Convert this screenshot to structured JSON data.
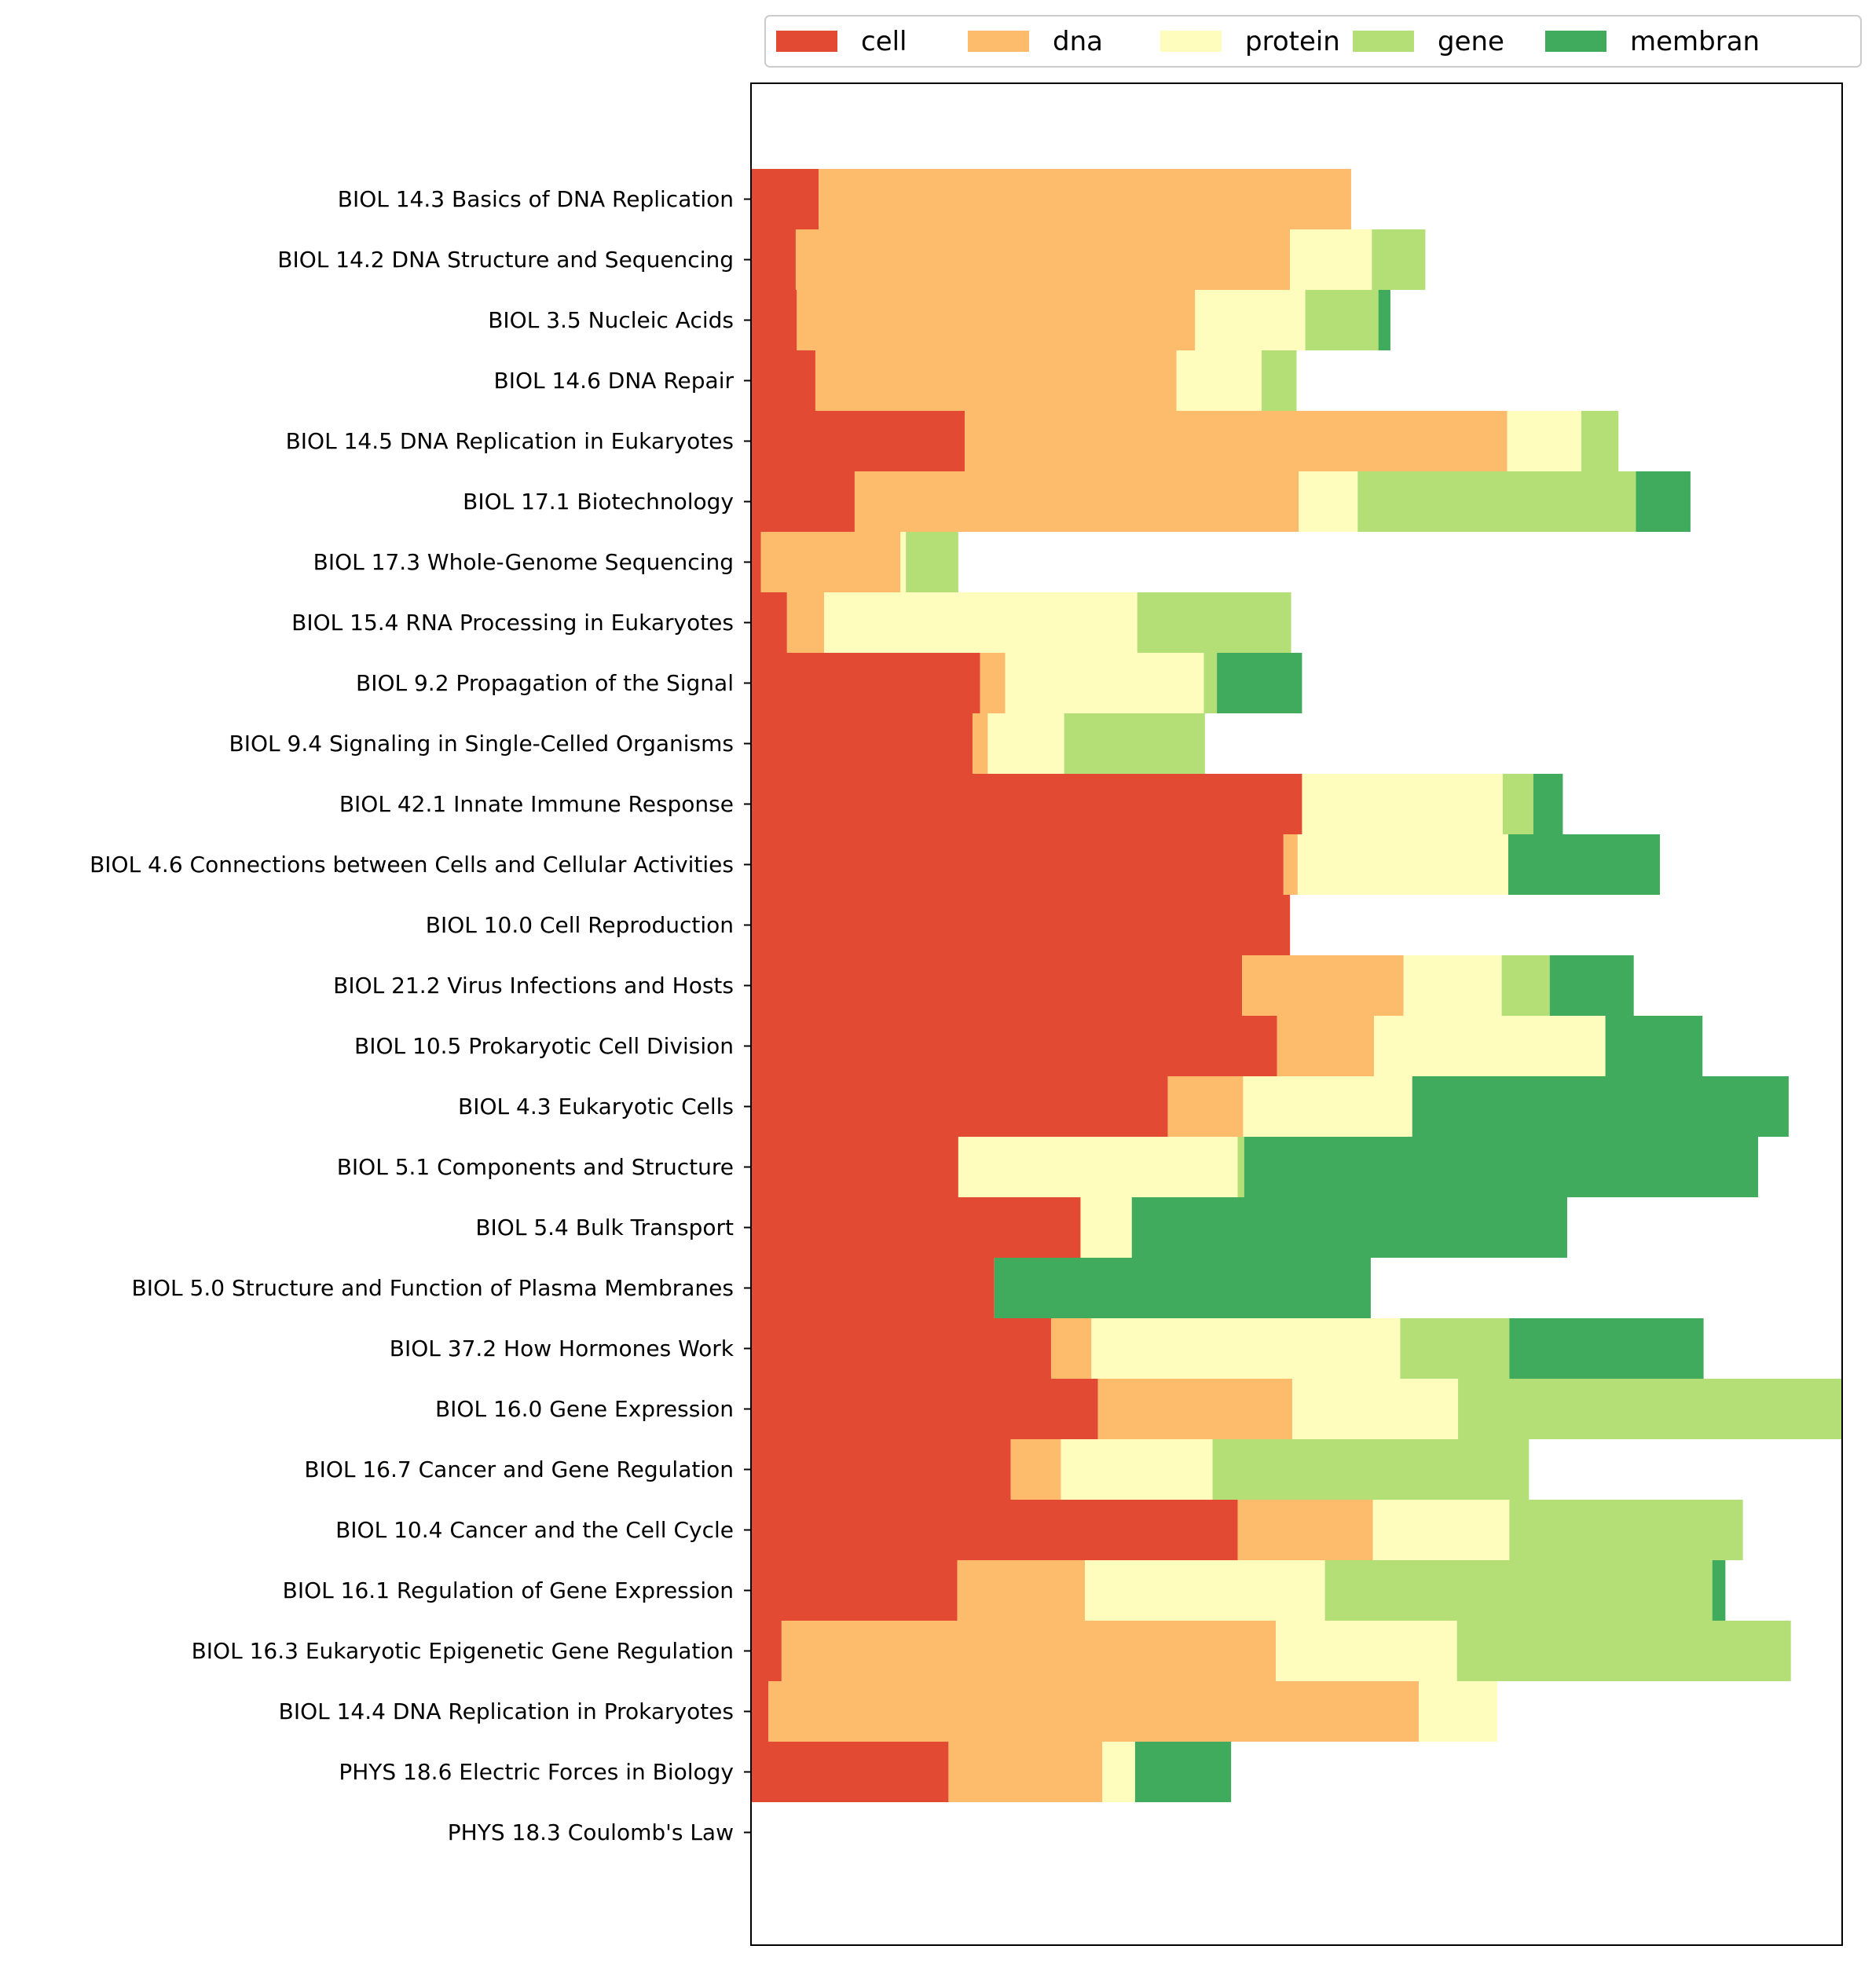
{
  "chart_data": {
    "type": "bar",
    "orientation": "horizontal",
    "stacked": true,
    "title": "",
    "xlabel": "",
    "ylabel": "",
    "xlim": [
      0,
      1.0
    ],
    "x_ticks_shown": false,
    "grid": false,
    "legend": {
      "placement": "top",
      "columns": 5
    },
    "categories": [
      "BIOL 14.3 Basics of DNA Replication",
      "BIOL 14.2 DNA Structure and Sequencing",
      "BIOL 3.5 Nucleic Acids",
      "BIOL 14.6 DNA Repair",
      "BIOL 14.5 DNA Replication in Eukaryotes",
      "BIOL 17.1 Biotechnology",
      "BIOL 17.3 Whole-Genome Sequencing",
      "BIOL 15.4 RNA Processing in Eukaryotes",
      "BIOL 9.2 Propagation of the Signal",
      "BIOL 9.4 Signaling in Single-Celled Organisms",
      "BIOL 42.1 Innate Immune Response",
      "BIOL 4.6 Connections between Cells and Cellular Activities",
      "BIOL 10.0 Cell Reproduction ",
      "BIOL 21.2 Virus Infections and Hosts",
      "BIOL 10.5 Prokaryotic Cell Division",
      "BIOL 4.3 Eukaryotic Cells",
      "BIOL 5.1 Components and Structure",
      "BIOL 5.4 Bulk Transport",
      "BIOL 5.0 Structure and Function of Plasma Membranes",
      "BIOL 37.2 How Hormones Work",
      "BIOL 16.0 Gene Expression",
      "BIOL 16.7 Cancer and Gene Regulation",
      "BIOL 10.4 Cancer and the Cell Cycle",
      "BIOL 16.1 Regulation of Gene Expression",
      "BIOL 16.3 Eukaryotic Epigenetic Gene Regulation",
      "BIOL 14.4 DNA Replication in Prokaryotes",
      "PHYS 18.6 Electric Forces in Biology",
      "PHYS 18.3 Coulomb's Law"
    ],
    "series": [
      {
        "name": "cell",
        "color": "#e34a33",
        "values": [
          0.062,
          0.041,
          0.042,
          0.059,
          0.196,
          0.095,
          0.009,
          0.033,
          0.21,
          0.203,
          0.505,
          0.488,
          0.494,
          0.45,
          0.482,
          0.382,
          0.19,
          0.302,
          0.223,
          0.275,
          0.318,
          0.238,
          0.446,
          0.189,
          0.028,
          0.016,
          0.181,
          0
        ]
      },
      {
        "name": "dna",
        "color": "#fdbb6c",
        "values": [
          0.488,
          0.453,
          0.365,
          0.331,
          0.497,
          0.407,
          0.128,
          0.034,
          0.023,
          0.014,
          0,
          0.013,
          0,
          0.148,
          0.089,
          0.069,
          0,
          0,
          0,
          0.037,
          0.178,
          0.046,
          0.124,
          0.117,
          0.453,
          0.596,
          0.141,
          0
        ]
      },
      {
        "name": "protein",
        "color": "#fefdbd",
        "values": [
          0,
          0.075,
          0.101,
          0.078,
          0.068,
          0.054,
          0.005,
          0.287,
          0.182,
          0.07,
          0.184,
          0.193,
          0,
          0.09,
          0.212,
          0.155,
          0.256,
          0.047,
          0,
          0.283,
          0.152,
          0.139,
          0.125,
          0.22,
          0.166,
          0.072,
          0.03,
          0
        ]
      },
      {
        "name": "gene",
        "color": "#b3df76",
        "values": [
          0,
          0.049,
          0.067,
          0.032,
          0.034,
          0.255,
          0.048,
          0.141,
          0.012,
          0.129,
          0.028,
          0,
          0,
          0.044,
          0,
          0,
          0.006,
          0,
          0,
          0.1,
          0.352,
          0.29,
          0.214,
          0.355,
          0.306,
          0,
          0,
          0
        ]
      },
      {
        "name": "membran",
        "color": "#41ab5d",
        "values": [
          0,
          0,
          0.011,
          0,
          0,
          0.05,
          0,
          0,
          0.078,
          0,
          0.027,
          0.139,
          0,
          0.077,
          0.089,
          0.345,
          0.471,
          0.399,
          0.345,
          0.178,
          0,
          0,
          0,
          0.012,
          0,
          0,
          0.088,
          0
        ]
      }
    ]
  }
}
